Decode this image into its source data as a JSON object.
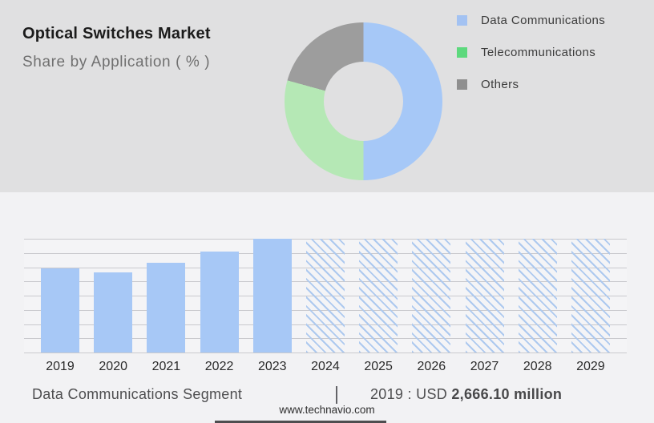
{
  "header": {
    "title": "Optical Switches Market",
    "subtitle": "Share by Application ( % )"
  },
  "colors": {
    "top_band_bg": "#e0e0e1",
    "bottom_band_bg": "#f2f2f4",
    "plot_bg": "#f4f4f6",
    "gridline": "#c9c9cd",
    "bar_solid_blue": "#a7c8f6",
    "bar_hatch_blue": "#adc9ef",
    "donut_blue": "#a6c8f7",
    "donut_green": "#b5e8b5",
    "donut_gray": "#9d9d9d",
    "legend_blue": "#a3c2f2",
    "legend_green": "#5dd97d",
    "legend_gray": "#8f8f8f"
  },
  "chart_data": [
    {
      "type": "pie",
      "subtype": "donut",
      "title": "Share by Application ( % )",
      "legend_position": "right",
      "segments": [
        {
          "label": "Data Communications",
          "pct_est": 50.0,
          "start_deg": 0,
          "end_deg": 180,
          "color": "#a6c8f7",
          "legend_color": "#a3c2f2"
        },
        {
          "label": "Telecommunications",
          "pct_est": 29.3,
          "start_deg": 180,
          "end_deg": 285.4,
          "color": "#b5e8b5",
          "legend_color": "#5dd97d"
        },
        {
          "label": "Others",
          "pct_est": 20.7,
          "start_deg": 285.4,
          "end_deg": 360,
          "color": "#9d9d9d",
          "legend_color": "#8f8f8f"
        }
      ]
    },
    {
      "type": "bar",
      "title": "Data Communications Segment (USD million)",
      "xlabel": "",
      "ylabel": "",
      "y_axis_labels_visible": false,
      "gridline_count": 9,
      "categories": [
        "2019",
        "2020",
        "2021",
        "2022",
        "2023",
        "2024",
        "2025",
        "2026",
        "2027",
        "2028",
        "2029"
      ],
      "bars": [
        {
          "year": "2019",
          "style": "solid",
          "height_pct": 74.3,
          "value_usd_million": 2666.1,
          "value_is_estimate": false
        },
        {
          "year": "2020",
          "style": "solid",
          "height_pct": 70.7,
          "value_usd_million": 2540,
          "value_is_estimate": true
        },
        {
          "year": "2021",
          "style": "solid",
          "height_pct": 79.2,
          "value_usd_million": 2840,
          "value_is_estimate": true
        },
        {
          "year": "2022",
          "style": "solid",
          "height_pct": 88.4,
          "value_usd_million": 3170,
          "value_is_estimate": true
        },
        {
          "year": "2023",
          "style": "solid",
          "height_pct": 100,
          "value_usd_million": 3560,
          "value_is_estimate": true
        },
        {
          "year": "2024",
          "style": "hatched",
          "height_pct": 100,
          "value_usd_million": null,
          "forecast": true
        },
        {
          "year": "2025",
          "style": "hatched",
          "height_pct": 100,
          "value_usd_million": null,
          "forecast": true
        },
        {
          "year": "2026",
          "style": "hatched",
          "height_pct": 100,
          "value_usd_million": null,
          "forecast": true
        },
        {
          "year": "2027",
          "style": "hatched",
          "height_pct": 100,
          "value_usd_million": null,
          "forecast": true
        },
        {
          "year": "2028",
          "style": "hatched",
          "height_pct": 100,
          "value_usd_million": null,
          "forecast": true
        },
        {
          "year": "2029",
          "style": "hatched",
          "height_pct": 100,
          "value_usd_million": null,
          "forecast": true
        }
      ]
    }
  ],
  "footer": {
    "segment_label": "Data Communications Segment",
    "separator": "|",
    "value_prefix": "2019 : USD ",
    "value_bold": "2,666.10 million",
    "website": "www.technavio.com"
  }
}
